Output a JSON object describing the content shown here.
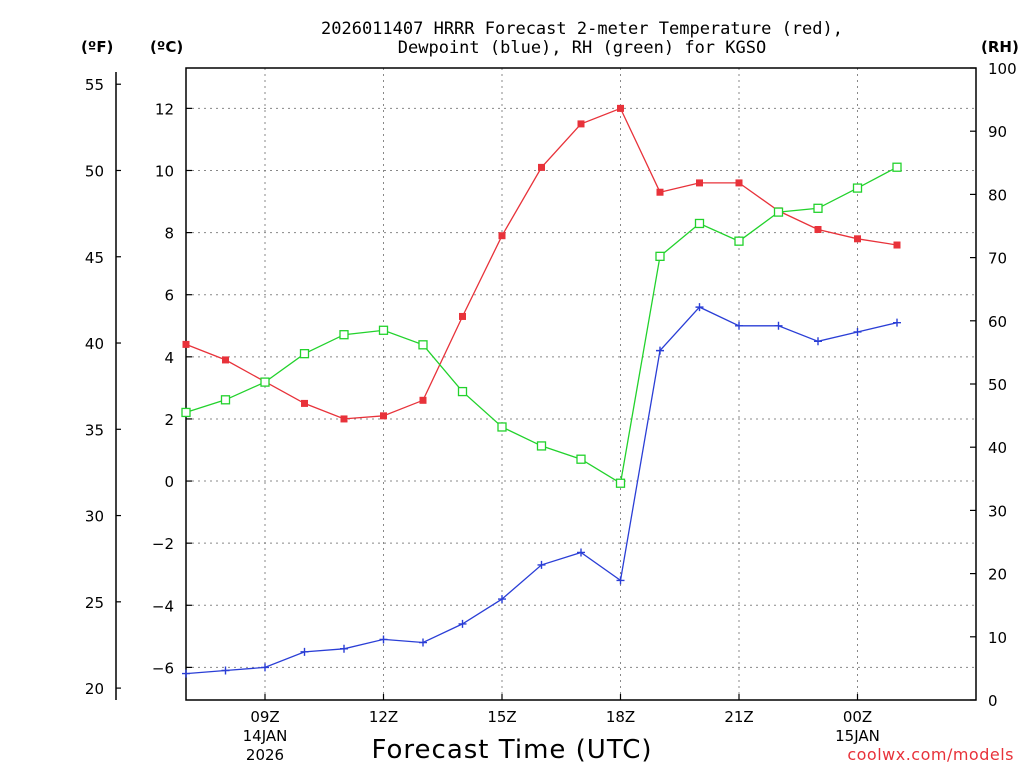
{
  "chart_data": {
    "type": "line",
    "title_lines": [
      "2026011407 HRRR Forecast 2-meter Temperature (red),",
      "Dewpoint (blue), RH (green) for KGSO"
    ],
    "xlabel": "Forecast Time (UTC)",
    "credit": "coolwx.com/models",
    "units": {
      "fahrenheit": "(ºF)",
      "celsius": "(ºC)",
      "rh": "(RH)"
    },
    "x_range": [
      7,
      27
    ],
    "celsius_axis": {
      "range": [
        -7.05,
        13.3
      ],
      "ticks": [
        -6,
        -4,
        -2,
        0,
        2,
        4,
        6,
        8,
        10,
        12
      ]
    },
    "fahrenheit_axis": {
      "ticks": [
        20,
        25,
        30,
        35,
        40,
        45,
        50,
        55
      ]
    },
    "rh_axis": {
      "range": [
        0,
        100
      ],
      "ticks": [
        0,
        10,
        20,
        30,
        40,
        50,
        60,
        70,
        80,
        90,
        100
      ]
    },
    "x_ticks": [
      {
        "hour": 9,
        "lines": [
          "09Z",
          "14JAN",
          "2026"
        ]
      },
      {
        "hour": 12,
        "lines": [
          "12Z"
        ]
      },
      {
        "hour": 15,
        "lines": [
          "15Z"
        ]
      },
      {
        "hour": 18,
        "lines": [
          "18Z"
        ]
      },
      {
        "hour": 21,
        "lines": [
          "21Z"
        ]
      },
      {
        "hour": 24,
        "lines": [
          "00Z",
          "15JAN"
        ]
      }
    ],
    "x": [
      7,
      8,
      9,
      10,
      11,
      12,
      13,
      14,
      15,
      16,
      17,
      18,
      19,
      20,
      21,
      22,
      23,
      24,
      25
    ],
    "series": [
      {
        "name": "2-meter Temperature",
        "axis": "celsius",
        "color": "#e8323a",
        "marker": "filled-square",
        "values": [
          4.4,
          3.9,
          3.2,
          2.5,
          2.0,
          2.1,
          2.6,
          5.3,
          7.9,
          10.1,
          11.5,
          12.0,
          9.3,
          9.6,
          9.6,
          8.7,
          8.1,
          7.8,
          7.6
        ]
      },
      {
        "name": "Dewpoint",
        "axis": "celsius",
        "color": "#2a3ed6",
        "marker": "plus",
        "values": [
          -6.2,
          -6.1,
          -6.0,
          -5.5,
          -5.4,
          -5.1,
          -5.2,
          -4.6,
          -3.8,
          -2.7,
          -2.3,
          -3.2,
          4.2,
          5.6,
          5.0,
          5.0,
          4.5,
          4.8,
          5.1
        ]
      },
      {
        "name": "RH",
        "axis": "rh",
        "color": "#22d22c",
        "marker": "open-square",
        "values": [
          45.5,
          47.5,
          50.3,
          54.8,
          57.8,
          58.5,
          56.2,
          48.8,
          43.2,
          40.2,
          38.1,
          34.3,
          70.2,
          75.4,
          72.6,
          77.2,
          77.8,
          81.0,
          84.3
        ]
      }
    ]
  }
}
